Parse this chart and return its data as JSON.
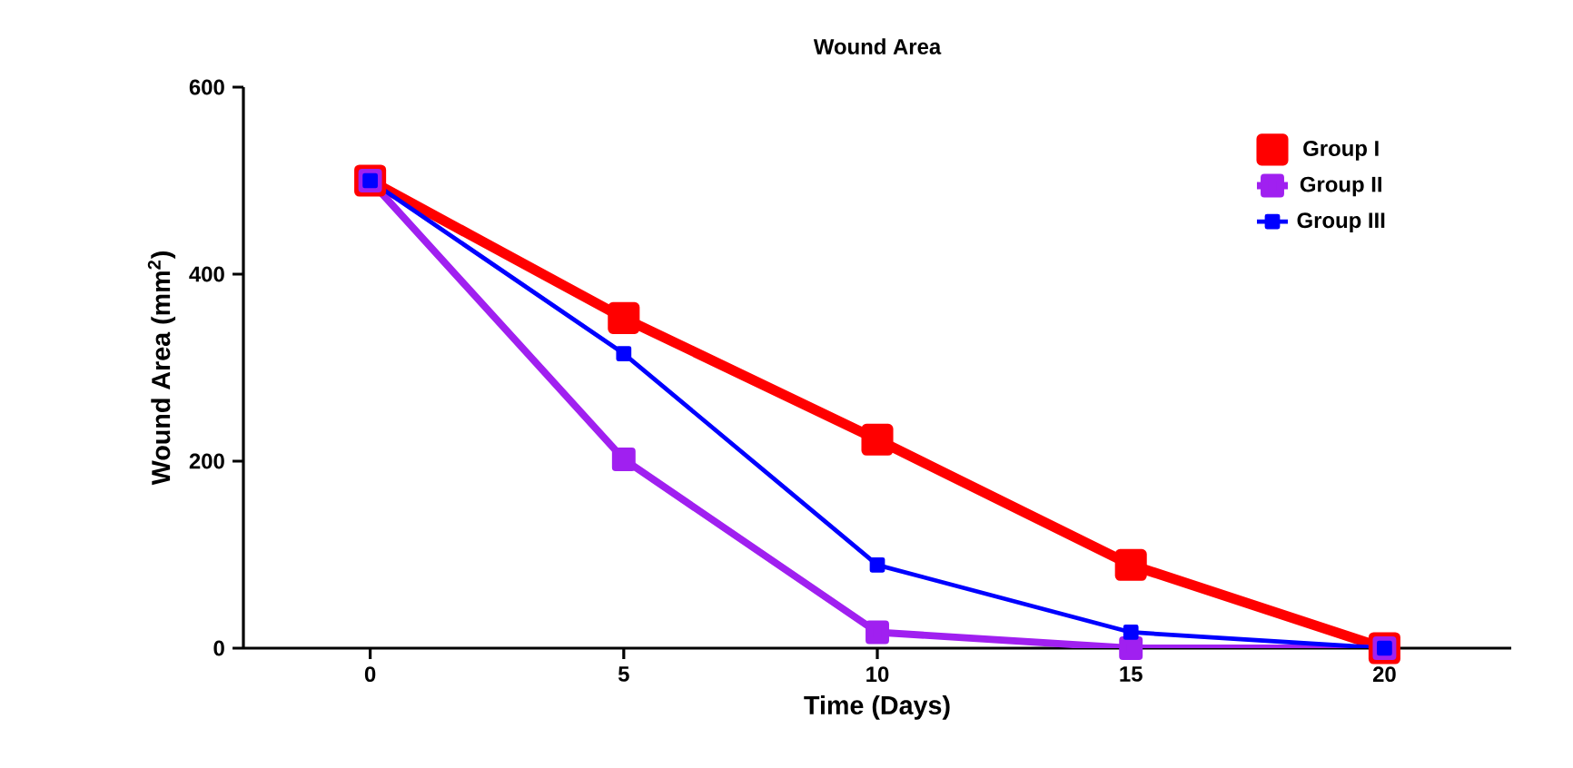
{
  "chart_data": {
    "type": "line",
    "title": "Wound Area",
    "xlabel": "Time (Days)",
    "ylabel": "Wound Area (mm$^{2}$)",
    "x": [
      0,
      5,
      10,
      15,
      20
    ],
    "series": [
      {
        "name": "Group I",
        "color": "#ff0000",
        "values": [
          500,
          353,
          223,
          89,
          0
        ]
      },
      {
        "name": "Group II",
        "color": "#a020f0",
        "values": [
          500,
          202,
          17,
          0,
          0
        ]
      },
      {
        "name": "Group III",
        "color": "#0000ff",
        "values": [
          500,
          315,
          89,
          17,
          0
        ]
      }
    ],
    "xlim": [
      -2.5,
      22.5
    ],
    "xticks": [
      0,
      5,
      10,
      15,
      20
    ],
    "ylim": [
      0,
      600
    ],
    "yticks": [
      0,
      200,
      400,
      600
    ],
    "marker": "square",
    "line_style": "solid",
    "legend": "top right",
    "grid": false
  }
}
